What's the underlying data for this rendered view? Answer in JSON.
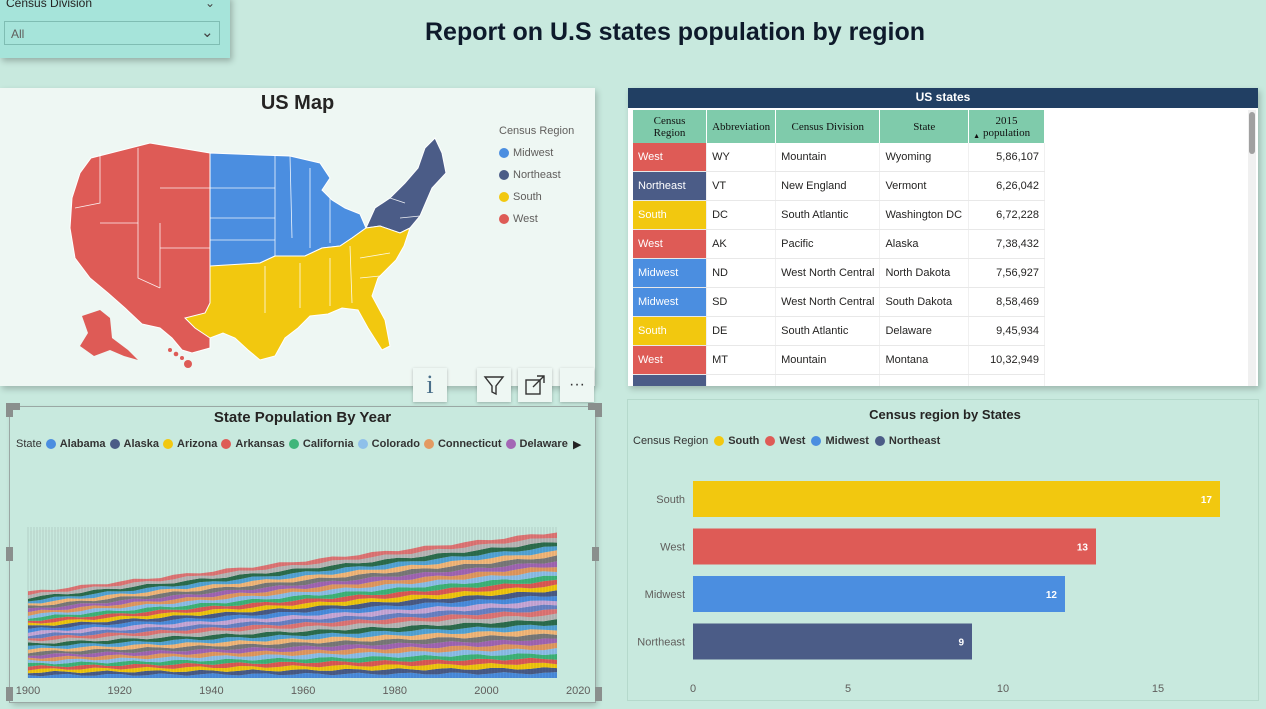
{
  "slicer": {
    "title": "Census Division",
    "value": "All"
  },
  "report_title": "Report on U.S states population by region",
  "colors": {
    "West": "#de5b56",
    "Northeast": "#4b5c87",
    "South": "#f2c80f",
    "Midwest": "#4b8ee0"
  },
  "map": {
    "title": "US Map",
    "legend_title": "Census Region",
    "legend": [
      {
        "name": "Midwest",
        "color": "#4b8ee0"
      },
      {
        "name": "Northeast",
        "color": "#4b5c87"
      },
      {
        "name": "South",
        "color": "#f2c80f"
      },
      {
        "name": "West",
        "color": "#de5b56"
      }
    ]
  },
  "visual_header": {
    "info": "i",
    "filter": "filter-icon",
    "focus": "focus-mode-icon",
    "more": "···"
  },
  "table": {
    "title": "US states",
    "columns": [
      "Census Region",
      "Abbreviation",
      "Census Division",
      "State",
      "2015 population"
    ],
    "rows": [
      [
        "West",
        "WY",
        "Mountain",
        "Wyoming",
        "5,86,107"
      ],
      [
        "Northeast",
        "VT",
        "New England",
        "Vermont",
        "6,26,042"
      ],
      [
        "South",
        "DC",
        "South Atlantic",
        "Washington DC",
        "6,72,228"
      ],
      [
        "West",
        "AK",
        "Pacific",
        "Alaska",
        "7,38,432"
      ],
      [
        "Midwest",
        "ND",
        "West North Central",
        "North Dakota",
        "7,56,927"
      ],
      [
        "Midwest",
        "SD",
        "West North Central",
        "South Dakota",
        "8,58,469"
      ],
      [
        "South",
        "DE",
        "South Atlantic",
        "Delaware",
        "9,45,934"
      ],
      [
        "West",
        "MT",
        "Mountain",
        "Montana",
        "10,32,949"
      ]
    ]
  },
  "area_chart": {
    "title": "State Population By Year",
    "legend_title": "State",
    "legend": [
      {
        "name": "Alabama",
        "color": "#4b8ee0"
      },
      {
        "name": "Alaska",
        "color": "#4b5c87"
      },
      {
        "name": "Arizona",
        "color": "#f2c80f"
      },
      {
        "name": "Arkansas",
        "color": "#de5b56"
      },
      {
        "name": "California",
        "color": "#3fb67a"
      },
      {
        "name": "Colorado",
        "color": "#8fc0ea"
      },
      {
        "name": "Connecticut",
        "color": "#e39a62"
      },
      {
        "name": "Delaware",
        "color": "#a367b5"
      }
    ],
    "x_ticks": [
      "1900",
      "1920",
      "1940",
      "1960",
      "1980",
      "2000",
      "2020"
    ]
  },
  "bar_chart": {
    "title": "Census region by States",
    "legend_title": "Census Region",
    "legend": [
      "South",
      "West",
      "Midwest",
      "Northeast"
    ],
    "categories": [
      "South",
      "West",
      "Midwest",
      "Northeast"
    ],
    "values": [
      17,
      13,
      12,
      9
    ],
    "x_ticks": [
      "0",
      "5",
      "10",
      "15"
    ],
    "xlim": [
      0,
      20
    ]
  }
}
